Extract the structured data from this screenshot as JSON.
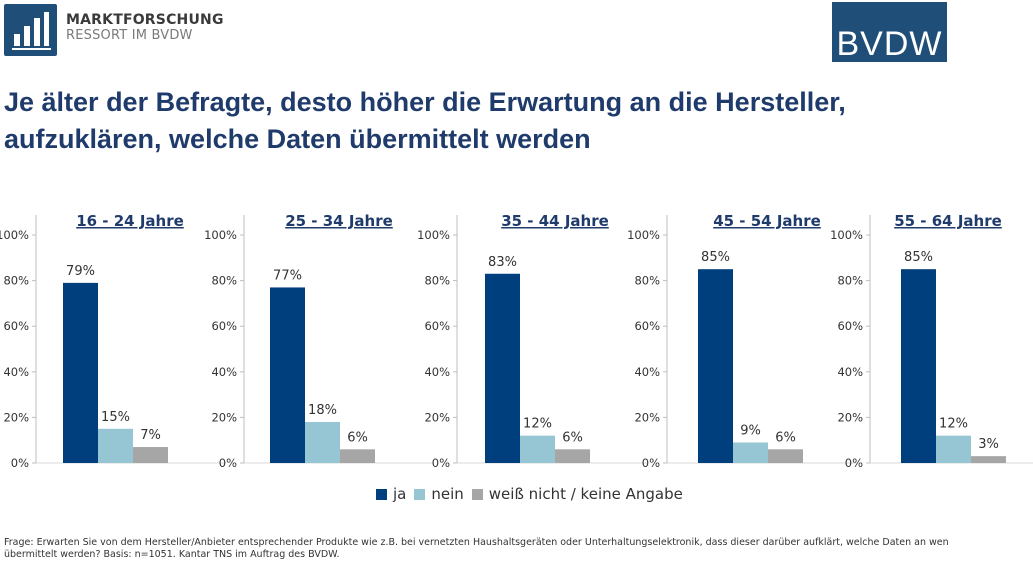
{
  "header": {
    "logo_line1": "MARKTFORSCHUNG",
    "logo_line2": "RESSORT IM BVDW",
    "brand": "BVDW"
  },
  "title": "Je älter der Befragte, desto höher die Erwartung an die Hersteller, aufzuklären, welche Daten übermittelt werden",
  "legend": [
    "ja",
    "nein",
    "weiß nicht / keine Angabe"
  ],
  "colors": {
    "ja": "#003f7d",
    "nein": "#96c6d4",
    "weiss_nicht": "#a6a6a6",
    "title": "#1f3b6b",
    "axis": "#bfbfbf"
  },
  "footnote": "Frage: Erwarten Sie von dem Hersteller/Anbieter entsprechender Produkte wie z.B. bei vernetzten Haushaltsgeräten oder Unterhaltungselektronik, dass dieser darüber aufklärt, welche Daten an wen übermittelt werden? Basis: n=1051. Kantar TNS im Auftrag des BVDW.",
  "chart_data": [
    {
      "type": "bar",
      "title": "16 - 24 Jahre",
      "categories": [
        "ja",
        "nein",
        "weiß nicht / keine Angabe"
      ],
      "values": [
        79,
        15,
        7
      ],
      "ylim": [
        0,
        100
      ],
      "yticks": [
        "0%",
        "20%",
        "40%",
        "60%",
        "80%",
        "100%"
      ]
    },
    {
      "type": "bar",
      "title": "25 - 34 Jahre",
      "categories": [
        "ja",
        "nein",
        "weiß nicht / keine Angabe"
      ],
      "values": [
        77,
        18,
        6
      ],
      "ylim": [
        0,
        100
      ],
      "yticks": [
        "0%",
        "20%",
        "40%",
        "60%",
        "80%",
        "100%"
      ]
    },
    {
      "type": "bar",
      "title": "35 - 44 Jahre",
      "categories": [
        "ja",
        "nein",
        "weiß nicht / keine Angabe"
      ],
      "values": [
        83,
        12,
        6
      ],
      "ylim": [
        0,
        100
      ],
      "yticks": [
        "0%",
        "20%",
        "40%",
        "60%",
        "80%",
        "100%"
      ]
    },
    {
      "type": "bar",
      "title": "45 - 54 Jahre",
      "categories": [
        "ja",
        "nein",
        "weiß nicht / keine Angabe"
      ],
      "values": [
        85,
        9,
        6
      ],
      "ylim": [
        0,
        100
      ],
      "yticks": [
        "0%",
        "20%",
        "40%",
        "60%",
        "80%",
        "100%"
      ]
    },
    {
      "type": "bar",
      "title": "55 - 64 Jahre",
      "categories": [
        "ja",
        "nein",
        "weiß nicht / keine Angabe"
      ],
      "values": [
        85,
        12,
        3
      ],
      "ylim": [
        0,
        100
      ],
      "yticks": [
        "0%",
        "20%",
        "40%",
        "60%",
        "80%",
        "100%"
      ]
    }
  ]
}
